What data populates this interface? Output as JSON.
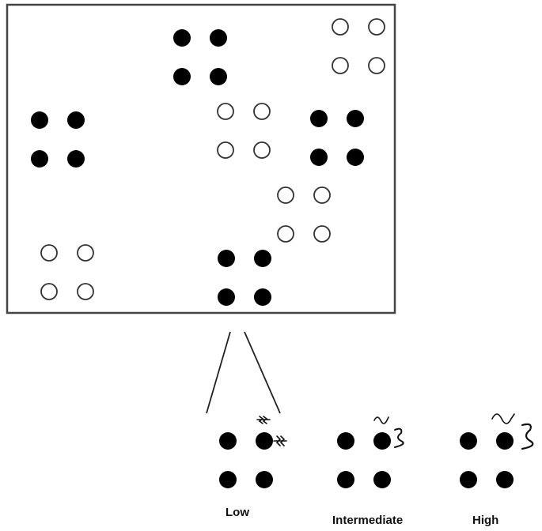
{
  "diagram": {
    "clusters": [
      {
        "id": "a",
        "fill": "filled"
      },
      {
        "id": "b",
        "fill": "hollow"
      },
      {
        "id": "c",
        "fill": "filled"
      },
      {
        "id": "d",
        "fill": "hollow"
      },
      {
        "id": "e",
        "fill": "filled"
      },
      {
        "id": "f",
        "fill": "hollow"
      },
      {
        "id": "g",
        "fill": "hollow"
      },
      {
        "id": "h",
        "fill": "filled"
      }
    ],
    "magnified_cluster": "h",
    "levels": [
      {
        "id": "low",
        "label": "Low"
      },
      {
        "id": "intermediate",
        "label": "Intermediate"
      },
      {
        "id": "high",
        "label": "High"
      }
    ]
  },
  "colors": {
    "filled": "#000000",
    "hollow": "#ffffff",
    "stroke": "#333333",
    "box_border": "#444444"
  }
}
